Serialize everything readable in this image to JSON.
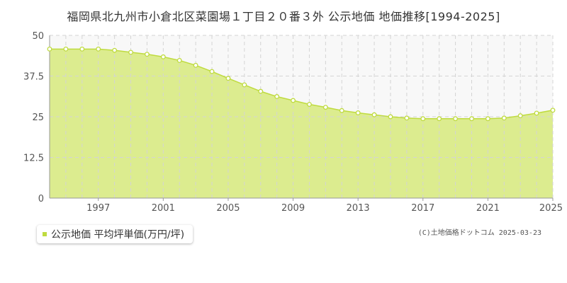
{
  "chart_data": {
    "type": "area",
    "title": "福岡県北九州市小倉北区菜園場１丁目２０番３外 公示地価 地価推移[1994-2025]",
    "xlabel": "",
    "ylabel": "",
    "xlim": [
      1994,
      2025
    ],
    "ylim": [
      0,
      50
    ],
    "yticks": [
      0,
      12.5,
      25,
      37.5,
      50
    ],
    "ytick_labels": [
      "0",
      "12.5",
      "25",
      "37.5",
      "50"
    ],
    "xticks": [
      1997,
      2001,
      2005,
      2009,
      2013,
      2017,
      2021,
      2025
    ],
    "xtick_labels": [
      "1997",
      "2001",
      "2005",
      "2009",
      "2013",
      "2017",
      "2021",
      "2025"
    ],
    "grid": true,
    "legend_position": "bottom-left",
    "x": [
      1994,
      1995,
      1996,
      1997,
      1998,
      1999,
      2000,
      2001,
      2002,
      2003,
      2004,
      2005,
      2006,
      2007,
      2008,
      2009,
      2010,
      2011,
      2012,
      2013,
      2014,
      2015,
      2016,
      2017,
      2018,
      2019,
      2020,
      2021,
      2022,
      2023,
      2024,
      2025
    ],
    "series": [
      {
        "name": "公示地価 平均坪単価(万円/坪)",
        "values": [
          45.8,
          45.8,
          45.8,
          45.8,
          45.4,
          44.8,
          44.2,
          43.4,
          42.3,
          40.8,
          38.9,
          36.8,
          34.8,
          32.8,
          31.2,
          30.0,
          28.8,
          27.9,
          26.9,
          26.2,
          25.6,
          25.0,
          24.6,
          24.4,
          24.4,
          24.4,
          24.4,
          24.4,
          24.6,
          25.3,
          26.1,
          27.0
        ],
        "color": "#bfdb3f"
      }
    ]
  },
  "colors": {
    "area_fill": "#dcec8f",
    "line": "#bfdb3f",
    "above_fill": "#f8f8f8",
    "grid": "#d4d4d4"
  },
  "credit": "(C)土地価格ドットコム 2025-03-23"
}
